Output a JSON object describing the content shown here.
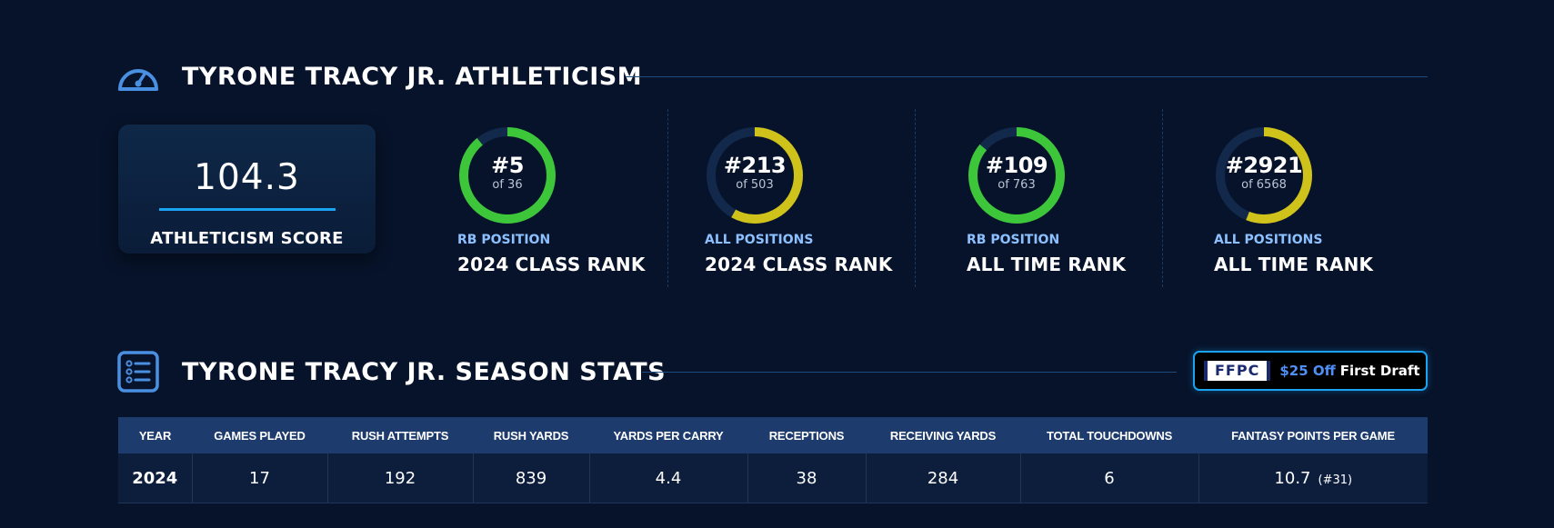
{
  "athleticism": {
    "title": "TYRONE TRACY JR. ATHLETICISM",
    "icon": "speedometer-icon",
    "score": {
      "value": "104.3",
      "label": "ATHLETICISM SCORE"
    },
    "ranks": [
      {
        "rank": "#5",
        "of": "of 36",
        "fraction": 0.89,
        "color": "#3ec63a",
        "subtitle": "RB POSITION",
        "title": "2024 CLASS RANK"
      },
      {
        "rank": "#213",
        "of": "of 503",
        "fraction": 0.58,
        "color": "#cfc21a",
        "subtitle": "ALL POSITIONS",
        "title": "2024 CLASS RANK"
      },
      {
        "rank": "#109",
        "of": "of 763",
        "fraction": 0.86,
        "color": "#3ec63a",
        "subtitle": "RB POSITION",
        "title": "ALL TIME RANK"
      },
      {
        "rank": "#2921",
        "of": "of 6568",
        "fraction": 0.56,
        "color": "#cfc21a",
        "subtitle": "ALL POSITIONS",
        "title": "ALL TIME RANK"
      }
    ]
  },
  "season": {
    "title": "TYRONE TRACY JR. SEASON STATS",
    "icon": "list-icon",
    "promo": {
      "logo": "FFPC",
      "price": "$25 Off",
      "text": "First Draft"
    },
    "table": {
      "headers": [
        "YEAR",
        "GAMES PLAYED",
        "RUSH ATTEMPTS",
        "RUSH YARDS",
        "YARDS PER CARRY",
        "RECEPTIONS",
        "RECEIVING YARDS",
        "TOTAL TOUCHDOWNS",
        "FANTASY POINTS PER GAME"
      ],
      "row": {
        "year": "2024",
        "games": "17",
        "rush_attempts": "192",
        "rush_yards": "839",
        "ypc": "4.4",
        "receptions": "38",
        "receiving_yards": "284",
        "touchdowns": "6",
        "fppg": "10.7",
        "fppg_rank": "(#31)"
      }
    }
  },
  "colors": {
    "background": "#07132a",
    "green": "#3ec63a",
    "yellow": "#cfc21a",
    "accent": "#1aa3f0",
    "table_header": "#1e3b6d"
  }
}
